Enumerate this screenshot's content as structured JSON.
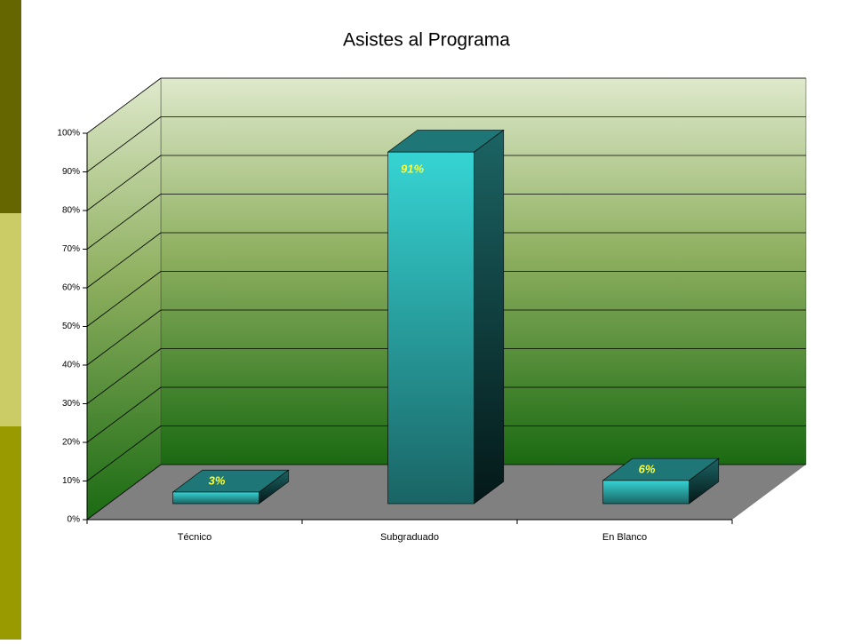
{
  "chart_data": {
    "type": "bar3d",
    "title": "Asistes al Programa",
    "categories": [
      "Técnico",
      "Subgraduado",
      "En Blanco"
    ],
    "values": [
      3,
      91,
      6
    ],
    "value_labels": [
      "3%",
      "91%",
      "6%"
    ],
    "color": "#33cccc",
    "ylim": [
      0,
      100
    ],
    "yticks": [
      {
        "value": 0,
        "label": "0%"
      },
      {
        "value": 10,
        "label": "10%"
      },
      {
        "value": 20,
        "label": "20%"
      },
      {
        "value": 30,
        "label": "30%"
      },
      {
        "value": 40,
        "label": "40%"
      },
      {
        "value": 50,
        "label": "50%"
      },
      {
        "value": 60,
        "label": "60%"
      },
      {
        "value": 70,
        "label": "70%"
      },
      {
        "value": 80,
        "label": "80%"
      },
      {
        "value": 90,
        "label": "90%"
      },
      {
        "value": 100,
        "label": "100%"
      }
    ],
    "grid": true
  }
}
